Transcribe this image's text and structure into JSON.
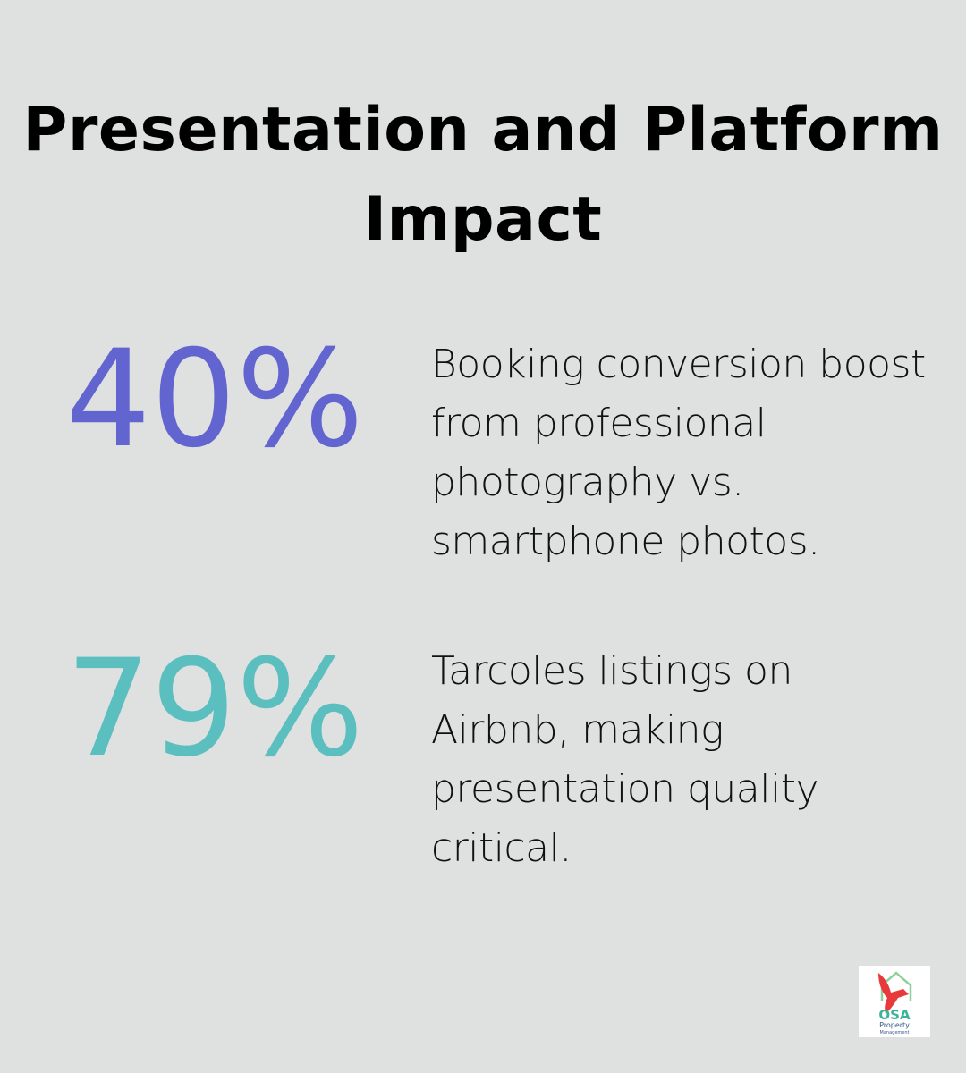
{
  "title": "Presentation and Platform Impact",
  "stats": [
    {
      "value": "40%",
      "color": "#6264d0",
      "description": "Booking conversion boost from professional photography vs. smartphone photos."
    },
    {
      "value": "79%",
      "color": "#5bbfc0",
      "description": "Tarcoles listings on Airbnb, making presentation quality critical."
    }
  ],
  "logo": {
    "brand": "OSA",
    "line1": "Property",
    "line2": "Management",
    "icon": "house-bird-logo"
  }
}
